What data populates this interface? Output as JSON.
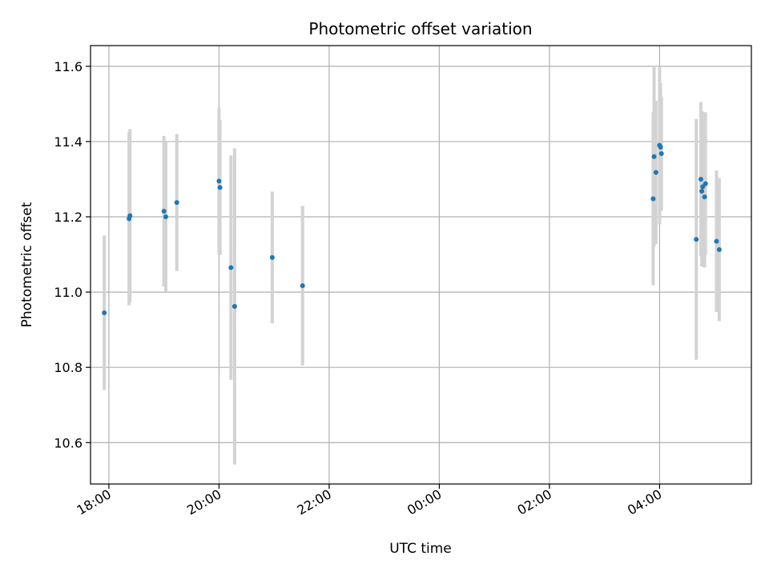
{
  "chart_data": {
    "type": "scatter",
    "title": "Photometric offset variation",
    "xlabel": "UTC time",
    "ylabel": "Photometric offset",
    "grid": true,
    "legend": "none",
    "x_unit": "hours (UTC clock time, continuing past midnight)",
    "xlim": [
      "17:40",
      "05:40"
    ],
    "ylim": [
      10.49,
      11.655
    ],
    "x_ticks": [
      "18:00",
      "20:00",
      "22:00",
      "00:00",
      "02:00",
      "04:00"
    ],
    "y_ticks": [
      "10.6",
      "10.8",
      "11.0",
      "11.2",
      "11.4",
      "11.6"
    ],
    "colors": {
      "point": "#1f77b4",
      "errorbar": "#d3d3d3",
      "grid": "#b0b0b0"
    },
    "points": [
      {
        "t": "17:55",
        "y": 10.945,
        "err": 0.205
      },
      {
        "t": "18:22",
        "y": 11.195,
        "err": 0.23
      },
      {
        "t": "18:23",
        "y": 11.203,
        "err": 0.23
      },
      {
        "t": "19:00",
        "y": 11.215,
        "err": 0.2
      },
      {
        "t": "19:02",
        "y": 11.2,
        "err": 0.2
      },
      {
        "t": "19:14",
        "y": 11.238,
        "err": 0.182
      },
      {
        "t": "20:00",
        "y": 11.295,
        "err": 0.195
      },
      {
        "t": "20:01",
        "y": 11.278,
        "err": 0.18
      },
      {
        "t": "20:13",
        "y": 11.065,
        "err": 0.298
      },
      {
        "t": "20:17",
        "y": 10.962,
        "err": 0.42
      },
      {
        "t": "20:58",
        "y": 11.092,
        "err": 0.175
      },
      {
        "t": "21:31",
        "y": 11.017,
        "err": 0.212
      },
      {
        "t": "03:53",
        "y": 11.248,
        "err": 0.23
      },
      {
        "t": "03:54",
        "y": 11.36,
        "err": 0.24
      },
      {
        "t": "03:56",
        "y": 11.318,
        "err": 0.19
      },
      {
        "t": "04:00",
        "y": 11.39,
        "err": 0.21
      },
      {
        "t": "04:01",
        "y": 11.385,
        "err": 0.17
      },
      {
        "t": "04:02",
        "y": 11.368,
        "err": 0.15
      },
      {
        "t": "04:40",
        "y": 11.14,
        "err": 0.32
      },
      {
        "t": "04:45",
        "y": 11.3,
        "err": 0.205
      },
      {
        "t": "04:46",
        "y": 11.268,
        "err": 0.2
      },
      {
        "t": "04:47",
        "y": 11.28,
        "err": 0.2
      },
      {
        "t": "04:49",
        "y": 11.253,
        "err": 0.188
      },
      {
        "t": "04:50",
        "y": 11.288,
        "err": 0.19
      },
      {
        "t": "05:02",
        "y": 11.135,
        "err": 0.188
      },
      {
        "t": "05:05",
        "y": 11.113,
        "err": 0.19
      }
    ]
  }
}
